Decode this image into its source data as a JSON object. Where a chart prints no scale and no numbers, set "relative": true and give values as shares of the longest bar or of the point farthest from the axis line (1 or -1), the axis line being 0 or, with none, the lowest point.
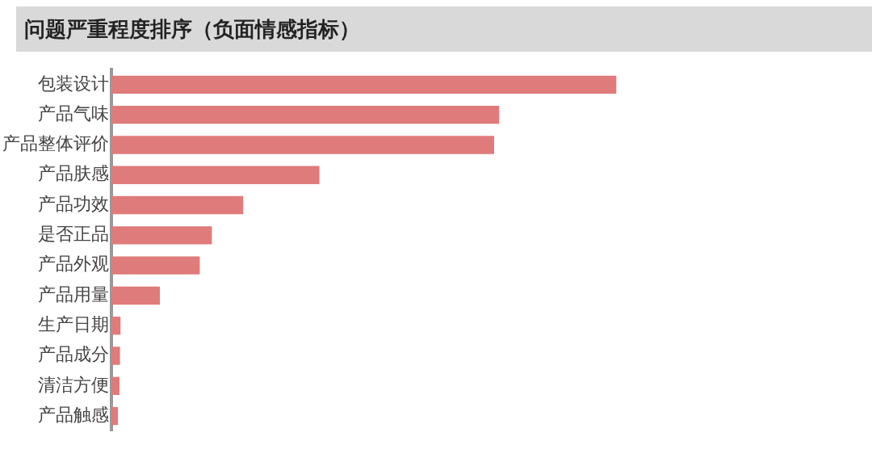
{
  "chart_data": {
    "type": "bar",
    "orientation": "horizontal",
    "relative": true,
    "title": "问题严重程度排序（负面情感指标）",
    "categories": [
      "包装设计",
      "产品气味",
      "产品整体评价",
      "产品肤感",
      "产品功效",
      "是否正品",
      "产品外观",
      "产品用量",
      "生产日期",
      "产品成分",
      "清洁方便",
      "产品触感"
    ],
    "values": [
      1,
      0.768,
      0.758,
      0.412,
      0.261,
      0.199,
      0.175,
      0.096,
      0.018,
      0.017,
      0.016,
      0.013
    ],
    "color": "#e07b7b",
    "legend": false
  }
}
